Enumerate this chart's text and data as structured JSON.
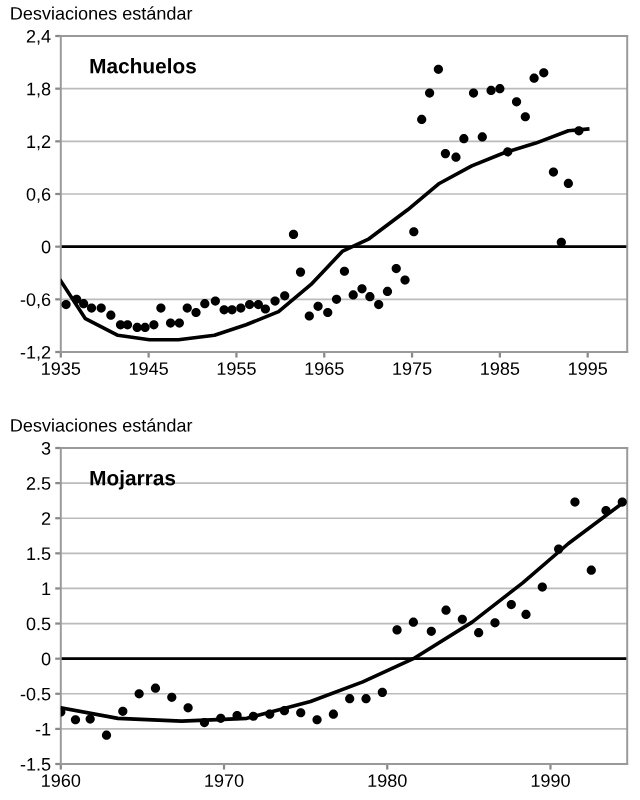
{
  "chart_data": [
    {
      "type": "scatter",
      "title": "Machuelos",
      "ylabel": "Desviaciones estándar",
      "xlim": [
        1935,
        1999.5
      ],
      "xticks": [
        1935,
        1945,
        1955,
        1965,
        1975,
        1985,
        1995
      ],
      "ylim": [
        -1.2,
        2.4
      ],
      "yticks": [
        {
          "value": -1.2,
          "label": "-1,2"
        },
        {
          "value": -0.6,
          "label": "-0,6"
        },
        0,
        {
          "value": 0.6,
          "label": "0,6"
        },
        {
          "value": 1.2,
          "label": "1,2"
        },
        {
          "value": 1.8,
          "label": "1,8"
        },
        {
          "value": 2.4,
          "label": "2,4"
        }
      ],
      "grid": "y",
      "marker": "circle",
      "ref_lines": [
        {
          "axis": "y",
          "value": 0,
          "color": "#000000"
        }
      ],
      "series": [
        {
          "color": "#000000",
          "x": [
            1935.6,
            1936.8,
            1937.6,
            1938.5,
            1939.6,
            1940.7,
            1941.8,
            1942.6,
            1943.7,
            1944.6,
            1945.6,
            1946.4,
            1947.5,
            1948.5,
            1949.4,
            1950.4,
            1951.4,
            1952.6,
            1953.6,
            1954.5,
            1955.5,
            1956.5,
            1957.5,
            1958.3,
            1959.4,
            1960.5,
            1961.5,
            1962.3,
            1963.3,
            1964.3,
            1965.4,
            1966.4,
            1967.3,
            1968.3,
            1969.3,
            1970.2,
            1971.2,
            1972.2,
            1973.2,
            1974.2,
            1975.2,
            1976.1,
            1977.0,
            1978.0,
            1978.8,
            1980.0,
            1980.9,
            1982.0,
            1983.0,
            1984.0,
            1985.0,
            1985.9,
            1986.9,
            1987.9,
            1988.9,
            1990.0,
            1991.1,
            1992.0,
            1992.8,
            1994.0
          ],
          "values": [
            -0.66,
            -0.6,
            -0.65,
            -0.7,
            -0.7,
            -0.78,
            -0.89,
            -0.89,
            -0.92,
            -0.92,
            -0.89,
            -0.7,
            -0.87,
            -0.87,
            -0.7,
            -0.75,
            -0.65,
            -0.62,
            -0.72,
            -0.72,
            -0.7,
            -0.66,
            -0.66,
            -0.71,
            -0.62,
            -0.56,
            0.14,
            -0.29,
            -0.79,
            -0.68,
            -0.75,
            -0.6,
            -0.28,
            -0.55,
            -0.48,
            -0.57,
            -0.66,
            -0.51,
            -0.25,
            -0.38,
            0.17,
            1.45,
            1.75,
            2.02,
            1.06,
            1.02,
            1.23,
            1.75,
            1.25,
            1.78,
            1.8,
            1.08,
            1.65,
            1.48,
            1.92,
            1.98,
            0.85,
            0.05,
            0.72,
            1.32
          ]
        },
        {
          "type": "line",
          "color": "#000000",
          "marker": "none",
          "x": [
            1935,
            1937.8,
            1941.5,
            1945.1,
            1948.4,
            1952.5,
            1956.1,
            1959.8,
            1963.5,
            1967.1,
            1970.1,
            1974.5,
            1978.1,
            1981.8,
            1985.5,
            1989.1,
            1992.8,
            1995
          ],
          "values": [
            -0.39,
            -0.82,
            -1.01,
            -1.06,
            -1.06,
            -1.01,
            -0.89,
            -0.74,
            -0.43,
            -0.05,
            0.09,
            0.42,
            0.72,
            0.92,
            1.07,
            1.18,
            1.32,
            1.34
          ]
        }
      ]
    },
    {
      "type": "scatter",
      "title": "Mojarras",
      "ylabel": "Desviaciones estándar",
      "xlim": [
        1960,
        1994.7
      ],
      "xticks": [
        1960,
        1970,
        1980,
        1990
      ],
      "ylim": [
        -1.5,
        3
      ],
      "yticks": [
        -1.5,
        -1,
        -0.5,
        0,
        0.5,
        1,
        1.5,
        2,
        2.5,
        3
      ],
      "grid": "y",
      "marker": "circle",
      "ref_lines": [
        {
          "axis": "y",
          "value": 0,
          "color": "#000000"
        }
      ],
      "series": [
        {
          "color": "#000000",
          "x": [
            1960,
            1960.9,
            1961.8,
            1962.8,
            1963.8,
            1964.8,
            1965.8,
            1966.8,
            1967.8,
            1968.8,
            1969.8,
            1970.8,
            1971.8,
            1972.8,
            1973.7,
            1974.7,
            1975.7,
            1976.7,
            1977.7,
            1978.7,
            1979.7,
            1980.6,
            1981.6,
            1982.7,
            1983.6,
            1984.6,
            1985.6,
            1986.6,
            1987.6,
            1988.5,
            1989.5,
            1990.5,
            1991.5,
            1992.5,
            1993.4,
            1994.4
          ],
          "values": [
            -0.76,
            -0.87,
            -0.86,
            -1.09,
            -0.75,
            -0.5,
            -0.42,
            -0.55,
            -0.7,
            -0.91,
            -0.85,
            -0.81,
            -0.82,
            -0.79,
            -0.74,
            -0.77,
            -0.87,
            -0.79,
            -0.57,
            -0.57,
            -0.48,
            0.41,
            0.52,
            0.39,
            0.69,
            0.56,
            0.37,
            0.51,
            0.77,
            0.63,
            1.02,
            1.56,
            2.23,
            1.26,
            2.11,
            2.23
          ]
        },
        {
          "type": "line",
          "color": "#000000",
          "marker": "none",
          "x": [
            1960,
            1963.5,
            1967.4,
            1971.4,
            1975.3,
            1978.5,
            1981.6,
            1985.2,
            1988.3,
            1991.1,
            1994.5
          ],
          "values": [
            -0.7,
            -0.85,
            -0.89,
            -0.85,
            -0.61,
            -0.33,
            0,
            0.52,
            1.08,
            1.64,
            2.23
          ]
        }
      ]
    }
  ]
}
